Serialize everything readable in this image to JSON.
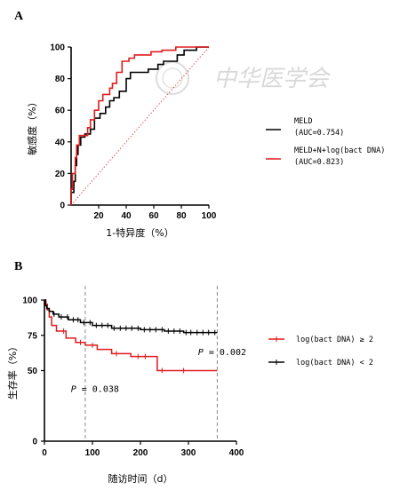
{
  "figure": {
    "panel_a_label": "A",
    "panel_b_label": "B",
    "watermark": "中华医学会"
  },
  "chart_data": [
    {
      "panel": "A",
      "type": "line",
      "xlabel": "1-特异度（%）",
      "ylabel": "敏感度（%）",
      "xlim": [
        0,
        100
      ],
      "ylim": [
        0,
        100
      ],
      "xticks": [
        "20",
        "40",
        "60",
        "80",
        "100"
      ],
      "yticks": [
        "0",
        "20",
        "40",
        "60",
        "80",
        "100"
      ],
      "grid": false,
      "legend_position": "right",
      "reference_line": {
        "from": [
          0,
          0
        ],
        "to": [
          100,
          100
        ],
        "color": "#e04040",
        "style": "dotted"
      },
      "series": [
        {
          "name": "MELD",
          "name_line2": "(AUC=0.754)",
          "color": "#000000",
          "points": [
            [
              0,
              0
            ],
            [
              0,
              8
            ],
            [
              2,
              8
            ],
            [
              2,
              15
            ],
            [
              3,
              15
            ],
            [
              3,
              25
            ],
            [
              4,
              25
            ],
            [
              4,
              32
            ],
            [
              5,
              32
            ],
            [
              5,
              38
            ],
            [
              7,
              38
            ],
            [
              7,
              43
            ],
            [
              10,
              43
            ],
            [
              10,
              45
            ],
            [
              14,
              45
            ],
            [
              14,
              48
            ],
            [
              17,
              48
            ],
            [
              17,
              55
            ],
            [
              21,
              55
            ],
            [
              21,
              58
            ],
            [
              25,
              58
            ],
            [
              25,
              62
            ],
            [
              28,
              62
            ],
            [
              28,
              66
            ],
            [
              31,
              66
            ],
            [
              31,
              68
            ],
            [
              35,
              68
            ],
            [
              35,
              72
            ],
            [
              40,
              72
            ],
            [
              40,
              80
            ],
            [
              43,
              80
            ],
            [
              43,
              84
            ],
            [
              56,
              84
            ],
            [
              56,
              86
            ],
            [
              63,
              86
            ],
            [
              63,
              89
            ],
            [
              67,
              89
            ],
            [
              67,
              91
            ],
            [
              77,
              91
            ],
            [
              77,
              95
            ],
            [
              82,
              95
            ],
            [
              82,
              98
            ],
            [
              91,
              98
            ],
            [
              91,
              100
            ],
            [
              100,
              100
            ]
          ]
        },
        {
          "name": "MELD+N+log(bact DNA)",
          "name_line2": "(AUC=0.823)",
          "color": "#e01b1b",
          "points": [
            [
              0,
              0
            ],
            [
              0,
              10
            ],
            [
              1,
              10
            ],
            [
              1,
              20
            ],
            [
              3,
              20
            ],
            [
              3,
              30
            ],
            [
              4,
              30
            ],
            [
              4,
              38
            ],
            [
              6,
              38
            ],
            [
              6,
              44
            ],
            [
              12,
              44
            ],
            [
              12,
              49
            ],
            [
              14,
              49
            ],
            [
              14,
              54
            ],
            [
              17,
              54
            ],
            [
              17,
              60
            ],
            [
              20,
              60
            ],
            [
              20,
              66
            ],
            [
              23,
              66
            ],
            [
              23,
              70
            ],
            [
              28,
              70
            ],
            [
              28,
              74
            ],
            [
              30,
              74
            ],
            [
              30,
              77
            ],
            [
              33,
              77
            ],
            [
              33,
              84
            ],
            [
              37,
              84
            ],
            [
              37,
              91
            ],
            [
              42,
              91
            ],
            [
              42,
              93
            ],
            [
              46,
              93
            ],
            [
              46,
              95
            ],
            [
              58,
              95
            ],
            [
              58,
              97
            ],
            [
              66,
              97
            ],
            [
              66,
              98
            ],
            [
              76,
              98
            ],
            [
              76,
              100
            ],
            [
              100,
              100
            ]
          ]
        }
      ]
    },
    {
      "panel": "B",
      "type": "line",
      "xlabel": "随访时间（d）",
      "ylabel": "生存率（%）",
      "xlim": [
        0,
        400
      ],
      "ylim": [
        0,
        100
      ],
      "xticks": [
        "0",
        "100",
        "200",
        "300",
        "400"
      ],
      "yticks": [
        "0",
        "50",
        "75",
        "100"
      ],
      "grid": false,
      "legend_position": "right",
      "vlines": [
        85,
        360
      ],
      "annotations": [
        {
          "label_italic": "P",
          "label_rest": " = 0.038",
          "x": 55,
          "y": 35
        },
        {
          "label_italic": "P",
          "label_rest": " = 0.002",
          "x": 320,
          "y": 61
        }
      ],
      "series": [
        {
          "name": "log(bact DNA) ≥ 2",
          "color": "#e01b1b",
          "points": [
            [
              0,
              100
            ],
            [
              3,
              100
            ],
            [
              3,
              97
            ],
            [
              6,
              97
            ],
            [
              6,
              93
            ],
            [
              10,
              93
            ],
            [
              10,
              88
            ],
            [
              15,
              88
            ],
            [
              15,
              82
            ],
            [
              25,
              82
            ],
            [
              25,
              78
            ],
            [
              45,
              78
            ],
            [
              45,
              73
            ],
            [
              65,
              73
            ],
            [
              65,
              70
            ],
            [
              85,
              70
            ],
            [
              85,
              68
            ],
            [
              110,
              68
            ],
            [
              110,
              65
            ],
            [
              140,
              65
            ],
            [
              140,
              62
            ],
            [
              180,
              62
            ],
            [
              180,
              60
            ],
            [
              235,
              60
            ],
            [
              235,
              50
            ],
            [
              360,
              50
            ]
          ],
          "censor_x": [
            40,
            75,
            100,
            150,
            195,
            210,
            245,
            290
          ]
        },
        {
          "name": "log(bact DNA) < 2",
          "color": "#000000",
          "points": [
            [
              0,
              100
            ],
            [
              2,
              100
            ],
            [
              2,
              96
            ],
            [
              5,
              96
            ],
            [
              5,
              94
            ],
            [
              10,
              94
            ],
            [
              10,
              92
            ],
            [
              18,
              92
            ],
            [
              18,
              90
            ],
            [
              30,
              90
            ],
            [
              30,
              88
            ],
            [
              50,
              88
            ],
            [
              50,
              86
            ],
            [
              75,
              86
            ],
            [
              75,
              84
            ],
            [
              100,
              84
            ],
            [
              100,
              82
            ],
            [
              140,
              82
            ],
            [
              140,
              80
            ],
            [
              200,
              80
            ],
            [
              200,
              79
            ],
            [
              250,
              79
            ],
            [
              250,
              78
            ],
            [
              290,
              78
            ],
            [
              290,
              77
            ],
            [
              360,
              77
            ]
          ],
          "censor_x": [
            20,
            35,
            48,
            60,
            70,
            82,
            95,
            108,
            120,
            132,
            145,
            158,
            170,
            182,
            195,
            208,
            220,
            232,
            245,
            258,
            270,
            282,
            295,
            305,
            318,
            330,
            342,
            355
          ]
        }
      ]
    }
  ]
}
